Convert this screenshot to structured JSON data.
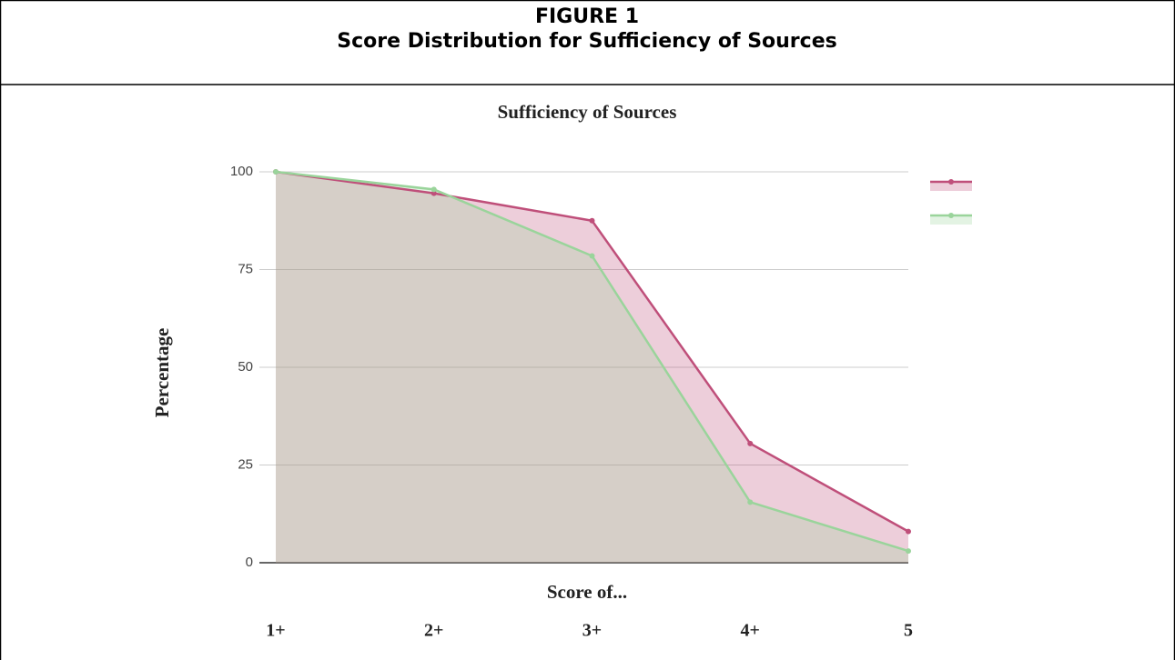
{
  "figure_label": "FIGURE 1",
  "figure_caption": "Score Distribution for Sufficiency of Sources",
  "chart_data": {
    "type": "area",
    "title": "Sufficiency of Sources",
    "x_label": "Score of...",
    "y_label": "Percentage",
    "categories": [
      "1+",
      "2+",
      "3+",
      "4+",
      "5"
    ],
    "series": [
      {
        "color": "#bf4f7a",
        "values": [
          100,
          94.5,
          87.5,
          30.5,
          8
        ]
      },
      {
        "color": "#9ad49b",
        "values": [
          100,
          95.5,
          78.5,
          15.5,
          3
        ]
      }
    ],
    "ylim": [
      0,
      100
    ],
    "yticks": [
      0,
      25,
      50,
      75,
      100
    ],
    "grid": true
  }
}
